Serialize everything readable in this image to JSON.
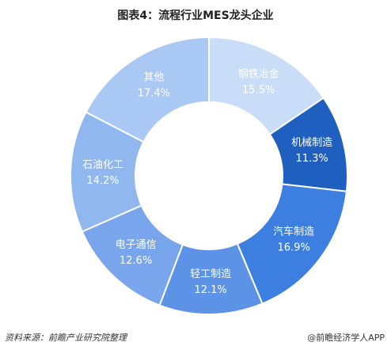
{
  "chart_data": {
    "type": "donut",
    "title": "图表4：流程行业MES龙头企业",
    "categories": [
      "钢铁冶金",
      "机械制造",
      "汽车制造",
      "轻工制造",
      "电子通信",
      "石油化工",
      "其他"
    ],
    "values": [
      15.5,
      11.3,
      16.9,
      12.1,
      12.6,
      14.2,
      17.4
    ],
    "value_labels": [
      "15.5%",
      "11.3%",
      "16.9%",
      "12.1%",
      "12.6%",
      "14.2%",
      "17.4%"
    ],
    "colors": [
      "#c9ddf8",
      "#1f5fc0",
      "#3c7fe0",
      "#5d93e6",
      "#78a5ec",
      "#91b7ef",
      "#a9c8f3"
    ],
    "label_colors": [
      "#ffffff",
      "#ffffff",
      "#ffffff",
      "#ffffff",
      "#ffffff",
      "#ffffff",
      "#ffffff"
    ]
  },
  "footer": {
    "source": "资料来源：前瞻产业研究院整理",
    "brand": "@前瞻经济学人APP"
  }
}
